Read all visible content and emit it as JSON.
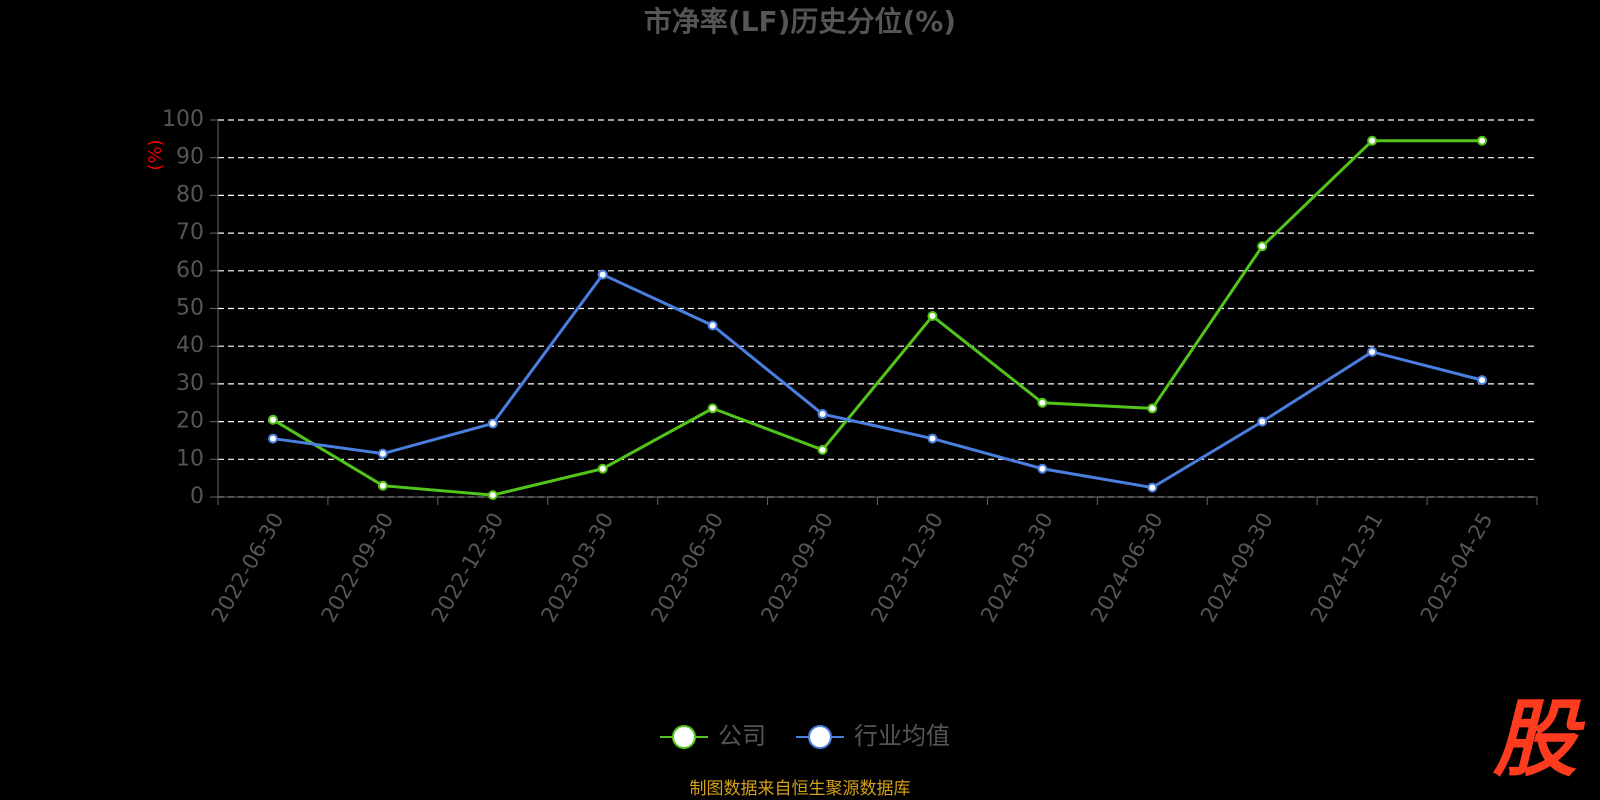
{
  "chart_data": {
    "type": "line",
    "title": "市净率(LF)历史分位(%)",
    "y_label": "(%)",
    "categories": [
      "2022-06-30",
      "2022-09-30",
      "2022-12-30",
      "2023-03-30",
      "2023-06-30",
      "2023-09-30",
      "2023-12-30",
      "2024-03-30",
      "2024-06-30",
      "2024-09-30",
      "2024-12-31",
      "2025-04-25"
    ],
    "series": [
      {
        "name": "公司",
        "color": "#52c41a",
        "values": [
          20.5,
          3,
          0.5,
          7.5,
          23.5,
          12.5,
          48,
          25,
          23.5,
          66.5,
          94.5,
          94.5
        ]
      },
      {
        "name": "行业均值",
        "color": "#4a7fe0",
        "values": [
          15.5,
          11.5,
          19.5,
          59,
          45.5,
          22,
          15.5,
          7.5,
          2.5,
          20,
          38.5,
          31
        ]
      }
    ],
    "ylim": [
      0,
      100
    ],
    "yticks": [
      0,
      10,
      20,
      30,
      40,
      50,
      60,
      70,
      80,
      90,
      100
    ],
    "grid": true,
    "source": "制图数据来自恒生聚源数据库",
    "watermark": "股"
  }
}
